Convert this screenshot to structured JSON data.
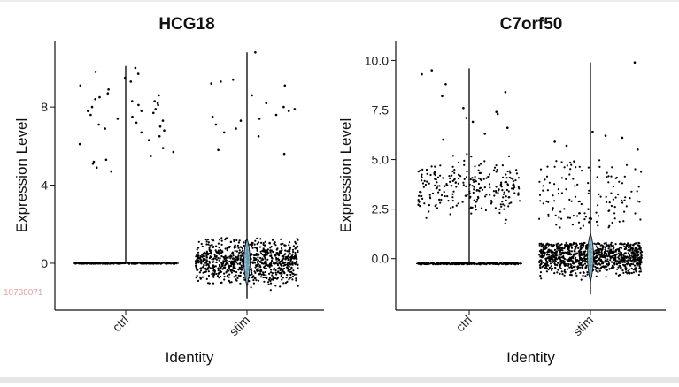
{
  "watermark": {
    "text": "10738071",
    "color": "#e8a0a0"
  },
  "colors": {
    "point": "#000000",
    "violin_stroke": "#000000",
    "violin_fill": "#7ab0c8",
    "axis": "#111111"
  },
  "chart_data": [
    {
      "type": "violin-scatter",
      "title": "HCG18",
      "xlabel": "Identity",
      "ylabel": "Expression Level",
      "categories": [
        "ctrl",
        "stim"
      ],
      "ylim": [
        -2.4,
        11.4
      ],
      "yticks": [
        0,
        4,
        8
      ],
      "ytick_labels": [
        "0",
        "4",
        "8"
      ],
      "grid": false,
      "legend": "none",
      "groups": [
        {
          "category": "ctrl",
          "n_zero": 260,
          "zero_jitter": 0.03,
          "violin_max": 10.1,
          "high_points": [
            10.0,
            9.8,
            9.7,
            9.5,
            9.3,
            9.1,
            8.9,
            8.7,
            8.6,
            8.5,
            8.4,
            8.3,
            8.3,
            8.2,
            8.1,
            8.1,
            8.0,
            7.9,
            7.8,
            7.8,
            7.7,
            7.6,
            7.5,
            7.4,
            7.3,
            7.2,
            7.1,
            7.0,
            6.9,
            6.8,
            6.7,
            6.5,
            6.3,
            6.1,
            5.9,
            5.7,
            5.5,
            5.3,
            5.2,
            5.1,
            4.9,
            4.7
          ]
        },
        {
          "category": "stim",
          "n_low": 900,
          "low_range": [
            -1.8,
            1.3
          ],
          "violin_max": 10.8,
          "violin_min": -1.8,
          "high_points": [
            10.8,
            9.4,
            9.3,
            9.2,
            9.1,
            8.6,
            8.2,
            8.0,
            7.9,
            7.8,
            7.6,
            7.5,
            7.4,
            7.3,
            7.1,
            6.9,
            6.7,
            6.5,
            5.8,
            5.6
          ]
        }
      ]
    },
    {
      "type": "violin-scatter",
      "title": "C7orf50",
      "xlabel": "Identity",
      "ylabel": "Expression Level",
      "categories": [
        "ctrl",
        "stim"
      ],
      "ylim": [
        -2.6,
        11.0
      ],
      "yticks": [
        0,
        2.5,
        5,
        7.5,
        10
      ],
      "ytick_labels": [
        "0.0",
        "2.5",
        "5.0",
        "7.5",
        "10.0"
      ],
      "grid": false,
      "legend": "none",
      "groups": [
        {
          "category": "ctrl",
          "n_zero": 280,
          "zero_level": -0.25,
          "n_mid": 260,
          "mid_range": [
            1.5,
            5.7
          ],
          "violin_max": 9.6,
          "high_points": [
            9.5,
            9.3,
            8.8,
            8.4,
            8.2,
            7.6,
            7.4,
            7.3,
            7.1,
            6.9,
            6.6,
            6.3,
            6.0
          ]
        },
        {
          "category": "stim",
          "n_low": 1000,
          "low_range": [
            -1.8,
            0.8
          ],
          "n_mid": 140,
          "mid_range": [
            1.5,
            5.0
          ],
          "violin_max": 9.9,
          "violin_min": -1.8,
          "high_points": [
            9.9,
            6.4,
            6.2,
            6.1,
            5.9,
            5.7,
            5.5
          ]
        }
      ]
    }
  ]
}
